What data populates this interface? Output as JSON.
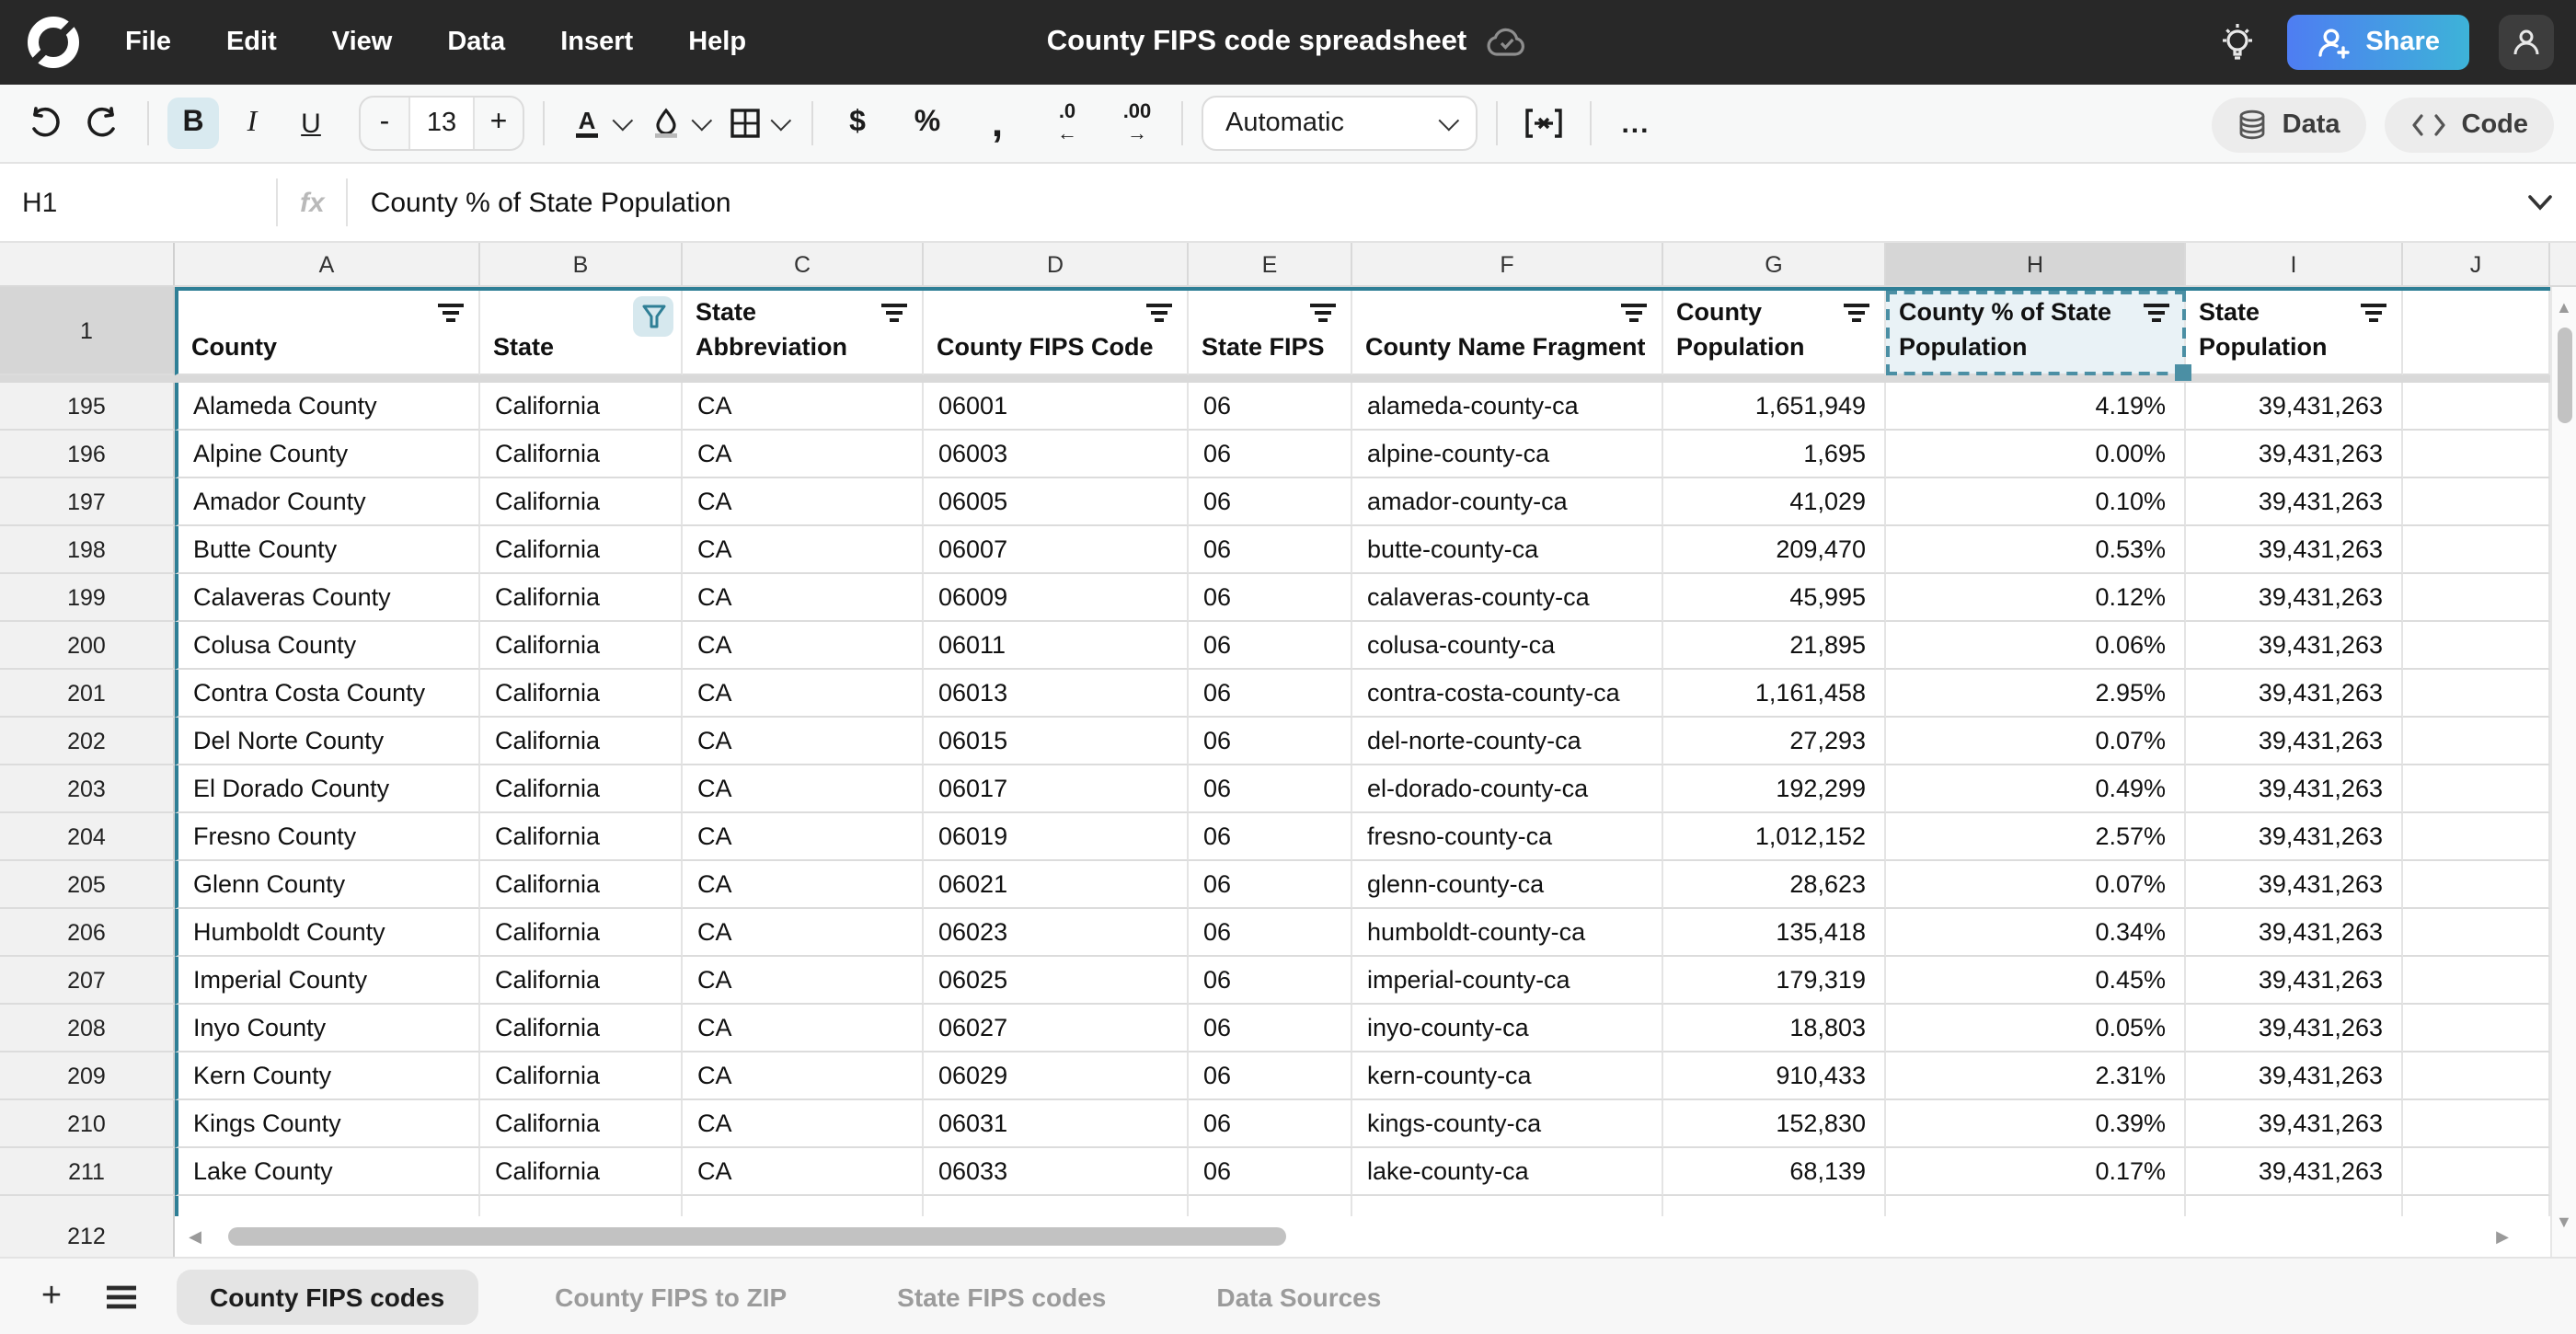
{
  "app": {
    "menus": [
      "File",
      "Edit",
      "View",
      "Data",
      "Insert",
      "Help"
    ],
    "title": "County FIPS code spreadsheet",
    "share_label": "Share",
    "accent_teal": "#2f7f96",
    "share_gradient": [
      "#4e7df2",
      "#3db3d8"
    ]
  },
  "toolbar": {
    "bold": "B",
    "italic": "I",
    "underline": "U",
    "font_size": "13",
    "minus": "-",
    "plus": "+",
    "currency": "$",
    "percent": "%",
    "comma": ",",
    "decrease_decimal": ".0",
    "increase_decimal": ".00",
    "format_selected": "Automatic",
    "more": "...",
    "data_label": "Data",
    "code_label": "Code"
  },
  "formula_bar": {
    "cell_ref": "H1",
    "fx_label": "fx",
    "value": "County % of State Population"
  },
  "grid": {
    "selected_cell": "H1",
    "header_row_number": "1",
    "last_row_number": "212",
    "columns": [
      {
        "letter": "A",
        "label": "County",
        "filter": true
      },
      {
        "letter": "B",
        "label": "State",
        "filter": "active"
      },
      {
        "letter": "C",
        "label": "State Abbreviation",
        "filter": true
      },
      {
        "letter": "D",
        "label": "County FIPS Code",
        "filter": true
      },
      {
        "letter": "E",
        "label": "State FIPS",
        "filter": true
      },
      {
        "letter": "F",
        "label": "County Name Fragment",
        "filter": true
      },
      {
        "letter": "G",
        "label": "County Population",
        "filter": true
      },
      {
        "letter": "H",
        "label": "County % of State Population",
        "filter": true,
        "selected": true
      },
      {
        "letter": "I",
        "label": "State Population",
        "filter": true
      },
      {
        "letter": "J",
        "label": "",
        "filter": false
      }
    ],
    "rows": [
      {
        "num": "195",
        "county": "Alameda County",
        "state": "California",
        "abbr": "CA",
        "fips": "06001",
        "state_fips": "06",
        "fragment": "alameda-county-ca",
        "pop": "1,651,949",
        "pct": "4.19%",
        "state_pop": "39,431,263"
      },
      {
        "num": "196",
        "county": "Alpine County",
        "state": "California",
        "abbr": "CA",
        "fips": "06003",
        "state_fips": "06",
        "fragment": "alpine-county-ca",
        "pop": "1,695",
        "pct": "0.00%",
        "state_pop": "39,431,263"
      },
      {
        "num": "197",
        "county": "Amador County",
        "state": "California",
        "abbr": "CA",
        "fips": "06005",
        "state_fips": "06",
        "fragment": "amador-county-ca",
        "pop": "41,029",
        "pct": "0.10%",
        "state_pop": "39,431,263"
      },
      {
        "num": "198",
        "county": "Butte County",
        "state": "California",
        "abbr": "CA",
        "fips": "06007",
        "state_fips": "06",
        "fragment": "butte-county-ca",
        "pop": "209,470",
        "pct": "0.53%",
        "state_pop": "39,431,263"
      },
      {
        "num": "199",
        "county": "Calaveras County",
        "state": "California",
        "abbr": "CA",
        "fips": "06009",
        "state_fips": "06",
        "fragment": "calaveras-county-ca",
        "pop": "45,995",
        "pct": "0.12%",
        "state_pop": "39,431,263"
      },
      {
        "num": "200",
        "county": "Colusa County",
        "state": "California",
        "abbr": "CA",
        "fips": "06011",
        "state_fips": "06",
        "fragment": "colusa-county-ca",
        "pop": "21,895",
        "pct": "0.06%",
        "state_pop": "39,431,263"
      },
      {
        "num": "201",
        "county": "Contra Costa County",
        "state": "California",
        "abbr": "CA",
        "fips": "06013",
        "state_fips": "06",
        "fragment": "contra-costa-county-ca",
        "pop": "1,161,458",
        "pct": "2.95%",
        "state_pop": "39,431,263"
      },
      {
        "num": "202",
        "county": "Del Norte County",
        "state": "California",
        "abbr": "CA",
        "fips": "06015",
        "state_fips": "06",
        "fragment": "del-norte-county-ca",
        "pop": "27,293",
        "pct": "0.07%",
        "state_pop": "39,431,263"
      },
      {
        "num": "203",
        "county": "El Dorado County",
        "state": "California",
        "abbr": "CA",
        "fips": "06017",
        "state_fips": "06",
        "fragment": "el-dorado-county-ca",
        "pop": "192,299",
        "pct": "0.49%",
        "state_pop": "39,431,263"
      },
      {
        "num": "204",
        "county": "Fresno County",
        "state": "California",
        "abbr": "CA",
        "fips": "06019",
        "state_fips": "06",
        "fragment": "fresno-county-ca",
        "pop": "1,012,152",
        "pct": "2.57%",
        "state_pop": "39,431,263"
      },
      {
        "num": "205",
        "county": "Glenn County",
        "state": "California",
        "abbr": "CA",
        "fips": "06021",
        "state_fips": "06",
        "fragment": "glenn-county-ca",
        "pop": "28,623",
        "pct": "0.07%",
        "state_pop": "39,431,263"
      },
      {
        "num": "206",
        "county": "Humboldt County",
        "state": "California",
        "abbr": "CA",
        "fips": "06023",
        "state_fips": "06",
        "fragment": "humboldt-county-ca",
        "pop": "135,418",
        "pct": "0.34%",
        "state_pop": "39,431,263"
      },
      {
        "num": "207",
        "county": "Imperial County",
        "state": "California",
        "abbr": "CA",
        "fips": "06025",
        "state_fips": "06",
        "fragment": "imperial-county-ca",
        "pop": "179,319",
        "pct": "0.45%",
        "state_pop": "39,431,263"
      },
      {
        "num": "208",
        "county": "Inyo County",
        "state": "California",
        "abbr": "CA",
        "fips": "06027",
        "state_fips": "06",
        "fragment": "inyo-county-ca",
        "pop": "18,803",
        "pct": "0.05%",
        "state_pop": "39,431,263"
      },
      {
        "num": "209",
        "county": "Kern County",
        "state": "California",
        "abbr": "CA",
        "fips": "06029",
        "state_fips": "06",
        "fragment": "kern-county-ca",
        "pop": "910,433",
        "pct": "2.31%",
        "state_pop": "39,431,263"
      },
      {
        "num": "210",
        "county": "Kings County",
        "state": "California",
        "abbr": "CA",
        "fips": "06031",
        "state_fips": "06",
        "fragment": "kings-county-ca",
        "pop": "152,830",
        "pct": "0.39%",
        "state_pop": "39,431,263"
      },
      {
        "num": "211",
        "county": "Lake County",
        "state": "California",
        "abbr": "CA",
        "fips": "06033",
        "state_fips": "06",
        "fragment": "lake-county-ca",
        "pop": "68,139",
        "pct": "0.17%",
        "state_pop": "39,431,263"
      }
    ]
  },
  "tabs": {
    "items": [
      {
        "label": "County FIPS codes",
        "active": true
      },
      {
        "label": "County FIPS to ZIP",
        "active": false
      },
      {
        "label": "State FIPS codes",
        "active": false
      },
      {
        "label": "Data Sources",
        "active": false
      }
    ]
  }
}
